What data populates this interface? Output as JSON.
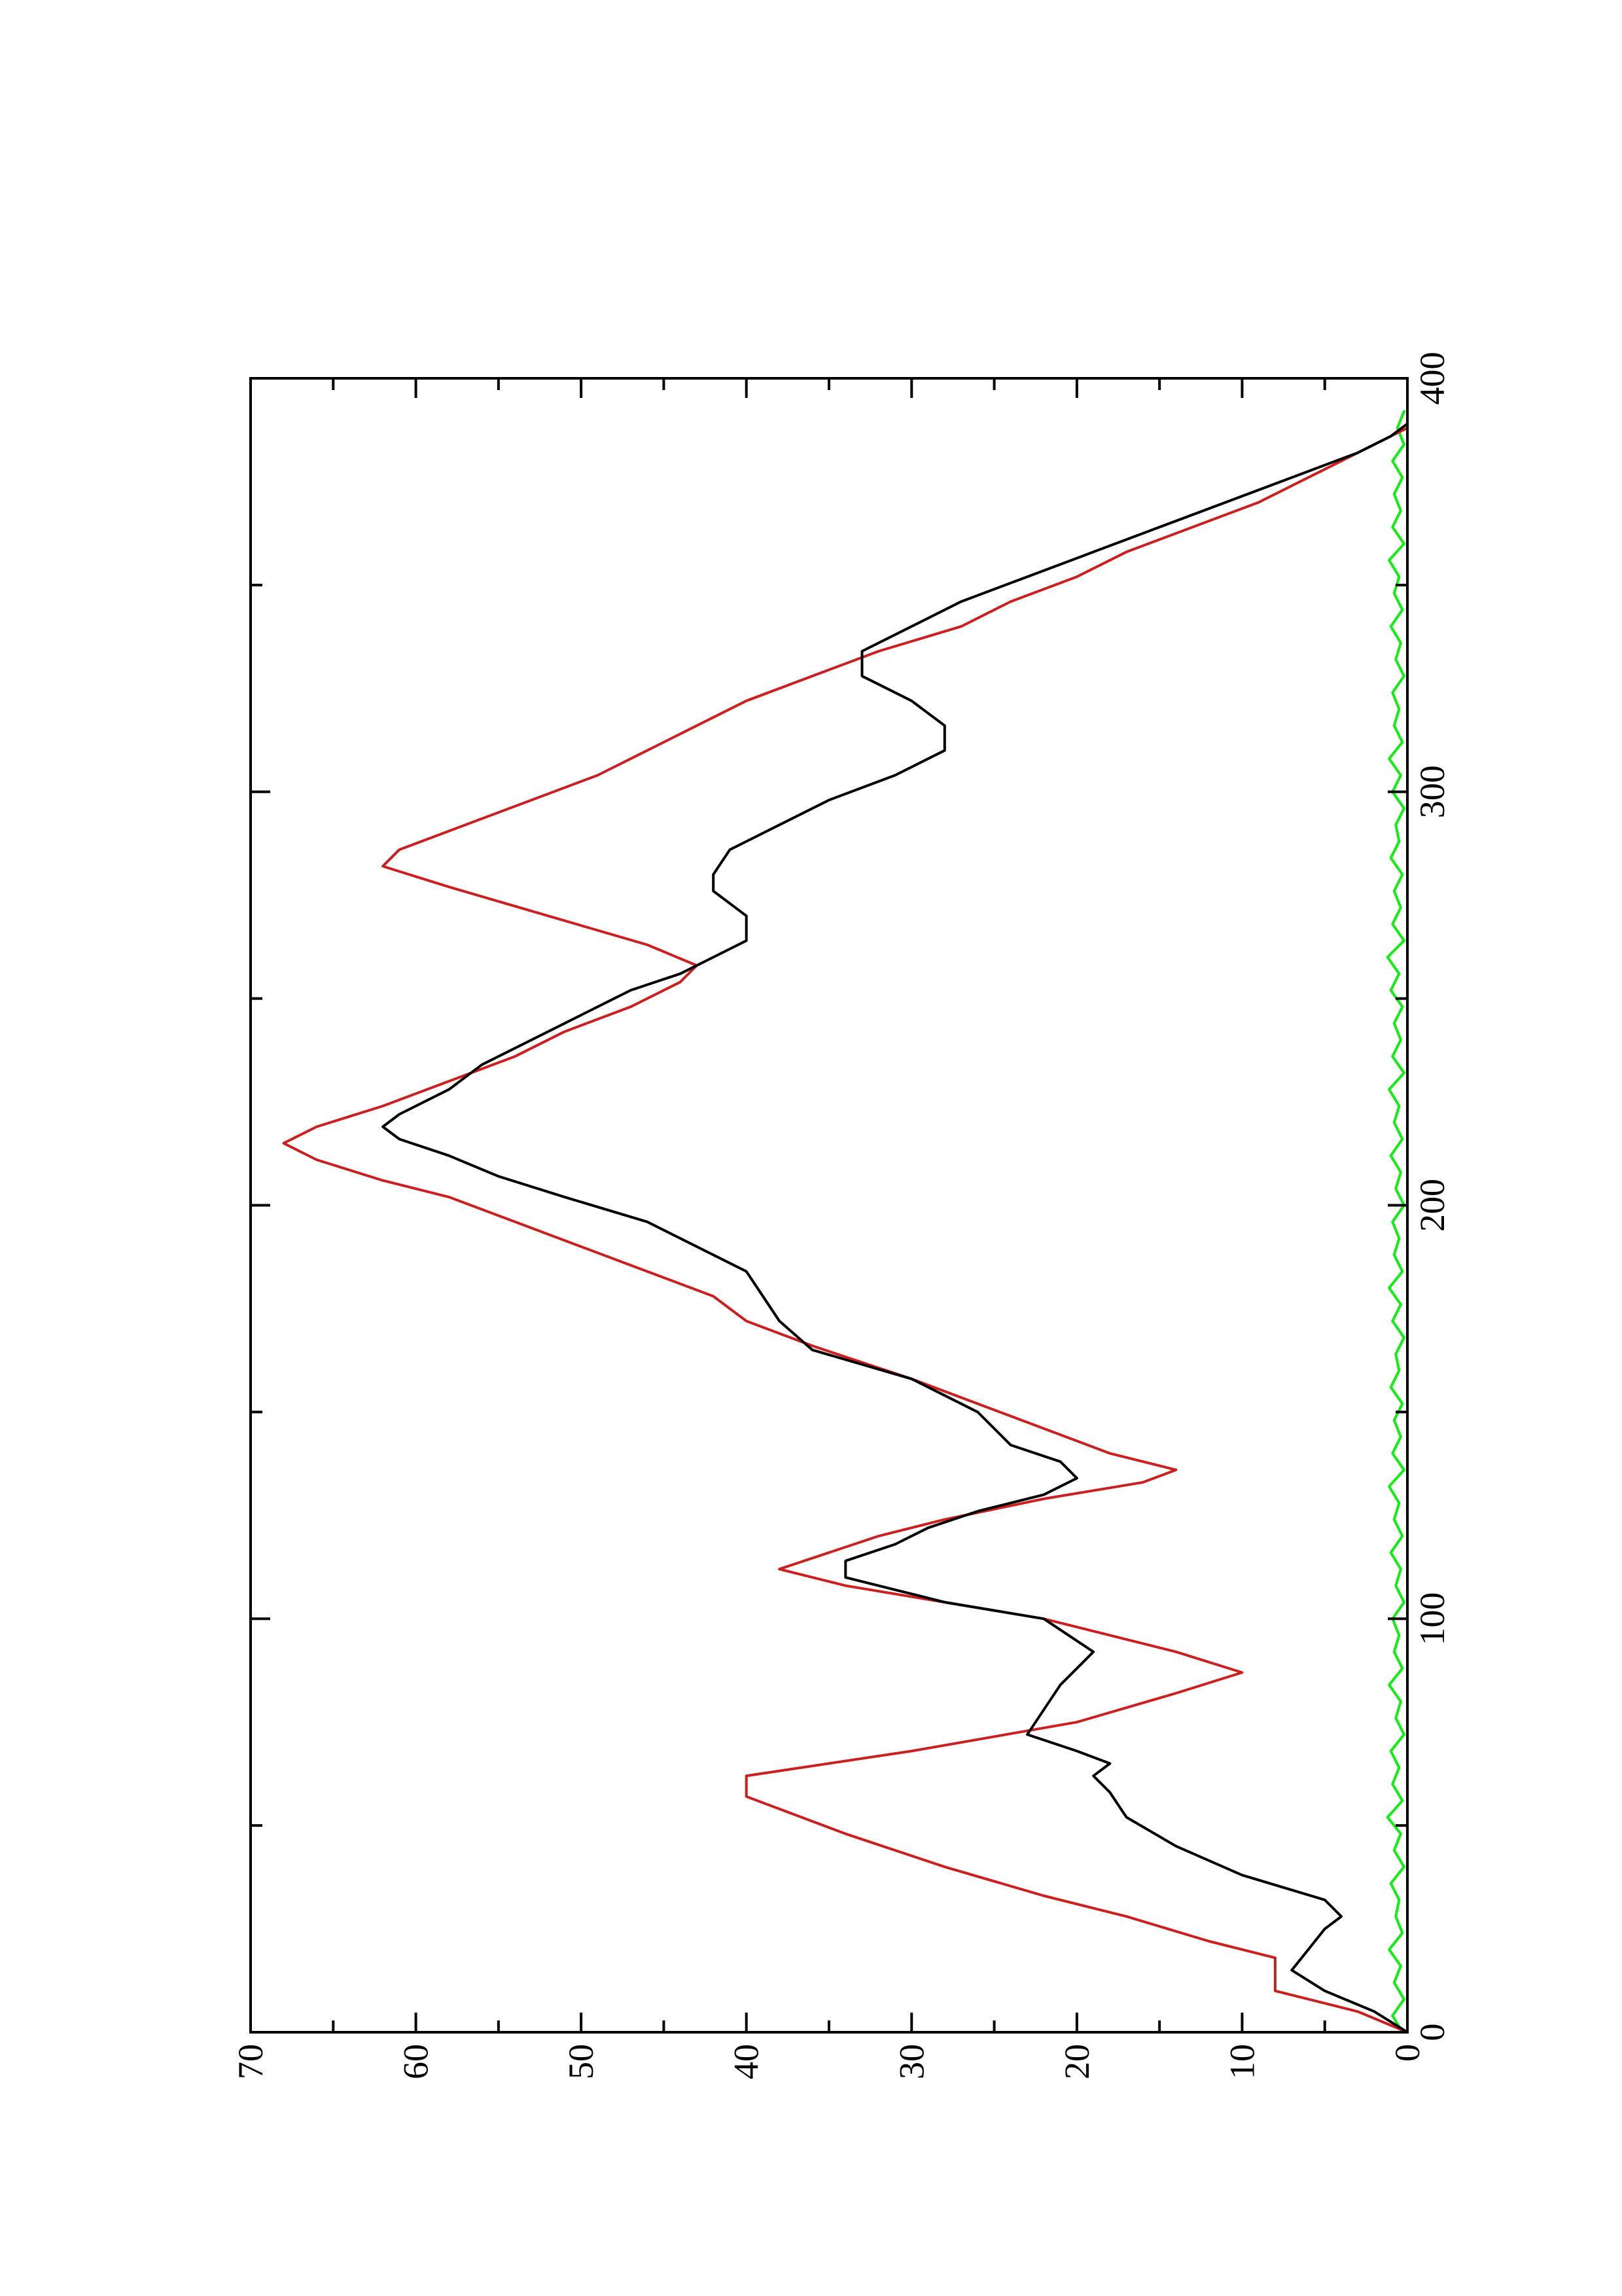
{
  "chart_data": {
    "type": "line",
    "title": "",
    "xlabel": "",
    "ylabel": "",
    "orientation": "rotated 90 degrees counter-clockwise (page in landscape)",
    "xlim": [
      0,
      400
    ],
    "ylim": [
      0,
      70
    ],
    "x_ticks": [
      0,
      100,
      200,
      300,
      400
    ],
    "x_minor_ticks": [
      50,
      150,
      250,
      350
    ],
    "y_ticks": [
      0,
      10,
      20,
      30,
      40,
      50,
      60,
      70
    ],
    "y_minor_ticks": [
      5,
      15,
      25,
      35,
      45,
      55,
      65
    ],
    "grid": false,
    "legend": "none",
    "colors": {
      "frame": "#000000",
      "black_series": "#000000",
      "red_series": "#cc1f1f",
      "green_series": "#11ee11"
    },
    "series": [
      {
        "color_key": "black_series",
        "style": "smooth line",
        "points": [
          [
            0,
            0
          ],
          [
            5,
            2
          ],
          [
            10,
            5
          ],
          [
            15,
            7
          ],
          [
            20,
            6
          ],
          [
            25,
            5
          ],
          [
            28,
            4
          ],
          [
            32,
            5
          ],
          [
            38,
            10
          ],
          [
            45,
            14
          ],
          [
            52,
            17
          ],
          [
            58,
            18
          ],
          [
            62,
            19
          ],
          [
            65,
            18
          ],
          [
            68,
            20
          ],
          [
            72,
            23
          ],
          [
            78,
            22
          ],
          [
            84,
            21
          ],
          [
            88,
            20
          ],
          [
            92,
            19
          ],
          [
            100,
            22
          ],
          [
            104,
            28
          ],
          [
            106,
            30
          ],
          [
            110,
            34
          ],
          [
            114,
            34
          ],
          [
            118,
            31
          ],
          [
            122,
            29
          ],
          [
            126,
            26
          ],
          [
            130,
            22
          ],
          [
            134,
            20
          ],
          [
            138,
            21
          ],
          [
            142,
            24
          ],
          [
            150,
            26
          ],
          [
            158,
            30
          ],
          [
            165,
            36
          ],
          [
            172,
            38
          ],
          [
            178,
            39
          ],
          [
            184,
            40
          ],
          [
            190,
            43
          ],
          [
            196,
            46
          ],
          [
            202,
            51
          ],
          [
            207,
            55
          ],
          [
            212,
            58
          ],
          [
            216,
            61
          ],
          [
            219,
            62
          ],
          [
            222,
            61
          ],
          [
            228,
            58
          ],
          [
            234,
            56
          ],
          [
            240,
            53
          ],
          [
            246,
            50
          ],
          [
            252,
            47
          ],
          [
            256,
            44
          ],
          [
            260,
            42
          ],
          [
            264,
            40
          ],
          [
            270,
            40
          ],
          [
            276,
            42
          ],
          [
            280,
            42
          ],
          [
            286,
            41
          ],
          [
            292,
            38
          ],
          [
            298,
            35
          ],
          [
            304,
            31
          ],
          [
            310,
            28
          ],
          [
            316,
            28
          ],
          [
            322,
            30
          ],
          [
            328,
            33
          ],
          [
            334,
            33
          ],
          [
            340,
            30
          ],
          [
            346,
            27
          ],
          [
            352,
            23
          ],
          [
            358,
            19
          ],
          [
            364,
            15
          ],
          [
            370,
            11
          ],
          [
            376,
            7
          ],
          [
            382,
            3
          ],
          [
            386,
            1
          ],
          [
            389,
            0
          ]
        ]
      },
      {
        "color_key": "red_series",
        "style": "straight segments",
        "points": [
          [
            0,
            0
          ],
          [
            5,
            3
          ],
          [
            10,
            8
          ],
          [
            18,
            8
          ],
          [
            22,
            12
          ],
          [
            28,
            17
          ],
          [
            33,
            22
          ],
          [
            40,
            28
          ],
          [
            48,
            34
          ],
          [
            57,
            40
          ],
          [
            62,
            40
          ],
          [
            68,
            30
          ],
          [
            75,
            20
          ],
          [
            82,
            14
          ],
          [
            87,
            10
          ],
          [
            92,
            14
          ],
          [
            100,
            22
          ],
          [
            104,
            28
          ],
          [
            108,
            34
          ],
          [
            112,
            38
          ],
          [
            116,
            35
          ],
          [
            120,
            32
          ],
          [
            124,
            28
          ],
          [
            129,
            22
          ],
          [
            133,
            16
          ],
          [
            136,
            14
          ],
          [
            140,
            18
          ],
          [
            146,
            22
          ],
          [
            152,
            26
          ],
          [
            158,
            30
          ],
          [
            166,
            36
          ],
          [
            172,
            40
          ],
          [
            178,
            42
          ],
          [
            184,
            46
          ],
          [
            190,
            50
          ],
          [
            196,
            54
          ],
          [
            202,
            58
          ],
          [
            206,
            62
          ],
          [
            211,
            66
          ],
          [
            215,
            68
          ],
          [
            219,
            66
          ],
          [
            224,
            62
          ],
          [
            230,
            58
          ],
          [
            236,
            54
          ],
          [
            242,
            51
          ],
          [
            248,
            47
          ],
          [
            254,
            44
          ],
          [
            258,
            43
          ],
          [
            263,
            46
          ],
          [
            270,
            52
          ],
          [
            277,
            58
          ],
          [
            282,
            62
          ],
          [
            286,
            61
          ],
          [
            292,
            57
          ],
          [
            298,
            53
          ],
          [
            304,
            49
          ],
          [
            310,
            46
          ],
          [
            316,
            43
          ],
          [
            322,
            40
          ],
          [
            328,
            36
          ],
          [
            334,
            32
          ],
          [
            340,
            27
          ],
          [
            346,
            24
          ],
          [
            352,
            20
          ],
          [
            358,
            17
          ],
          [
            364,
            13
          ],
          [
            370,
            9
          ],
          [
            376,
            6
          ],
          [
            382,
            3
          ],
          [
            388,
            0
          ]
        ]
      },
      {
        "color_key": "green_series",
        "style": "noisy near-zero line",
        "points": [
          [
            0,
            0.3
          ],
          [
            4,
            0.9
          ],
          [
            8,
            0.2
          ],
          [
            12,
            0.8
          ],
          [
            16,
            0.4
          ],
          [
            20,
            1.1
          ],
          [
            24,
            0.3
          ],
          [
            28,
            0.7
          ],
          [
            32,
            0.5
          ],
          [
            36,
            1.0
          ],
          [
            40,
            0.2
          ],
          [
            44,
            0.8
          ],
          [
            48,
            0.4
          ],
          [
            52,
            1.2
          ],
          [
            56,
            0.3
          ],
          [
            60,
            0.9
          ],
          [
            64,
            0.5
          ],
          [
            68,
            1.0
          ],
          [
            72,
            0.2
          ],
          [
            76,
            0.7
          ],
          [
            80,
            0.4
          ],
          [
            84,
            1.1
          ],
          [
            88,
            0.3
          ],
          [
            92,
            0.8
          ],
          [
            96,
            0.5
          ],
          [
            100,
            0.9
          ],
          [
            104,
            0.2
          ],
          [
            108,
            0.7
          ],
          [
            112,
            0.4
          ],
          [
            116,
            1.0
          ],
          [
            120,
            0.3
          ],
          [
            124,
            0.8
          ],
          [
            128,
            0.5
          ],
          [
            132,
            1.1
          ],
          [
            136,
            0.2
          ],
          [
            140,
            0.9
          ],
          [
            144,
            0.4
          ],
          [
            148,
            0.8
          ],
          [
            152,
            0.3
          ],
          [
            156,
            1.0
          ],
          [
            160,
            0.5
          ],
          [
            164,
            0.7
          ],
          [
            168,
            0.2
          ],
          [
            172,
            0.9
          ],
          [
            176,
            0.4
          ],
          [
            180,
            1.1
          ],
          [
            184,
            0.3
          ],
          [
            188,
            0.8
          ],
          [
            192,
            0.5
          ],
          [
            196,
            0.9
          ],
          [
            200,
            0.2
          ],
          [
            204,
            0.7
          ],
          [
            208,
            0.4
          ],
          [
            212,
            1.0
          ],
          [
            216,
            0.3
          ],
          [
            220,
            0.8
          ],
          [
            224,
            0.5
          ],
          [
            228,
            1.1
          ],
          [
            232,
            0.2
          ],
          [
            236,
            0.9
          ],
          [
            240,
            0.4
          ],
          [
            244,
            0.8
          ],
          [
            248,
            0.3
          ],
          [
            252,
            1.0
          ],
          [
            256,
            0.5
          ],
          [
            260,
            1.2
          ],
          [
            264,
            0.2
          ],
          [
            268,
            0.9
          ],
          [
            272,
            0.4
          ],
          [
            276,
            0.8
          ],
          [
            280,
            0.3
          ],
          [
            284,
            1.0
          ],
          [
            288,
            0.5
          ],
          [
            292,
            0.7
          ],
          [
            296,
            0.2
          ],
          [
            300,
            0.9
          ],
          [
            304,
            0.4
          ],
          [
            308,
            1.1
          ],
          [
            312,
            0.3
          ],
          [
            316,
            0.8
          ],
          [
            320,
            0.5
          ],
          [
            324,
            0.9
          ],
          [
            328,
            0.2
          ],
          [
            332,
            0.7
          ],
          [
            336,
            0.4
          ],
          [
            340,
            1.0
          ],
          [
            344,
            0.3
          ],
          [
            348,
            0.8
          ],
          [
            352,
            0.5
          ],
          [
            356,
            1.1
          ],
          [
            360,
            0.2
          ],
          [
            364,
            0.9
          ],
          [
            368,
            0.4
          ],
          [
            372,
            0.8
          ],
          [
            376,
            0.3
          ],
          [
            380,
            0.9
          ],
          [
            384,
            0.2
          ],
          [
            388,
            0.6
          ],
          [
            392,
            0.2
          ]
        ]
      }
    ]
  }
}
